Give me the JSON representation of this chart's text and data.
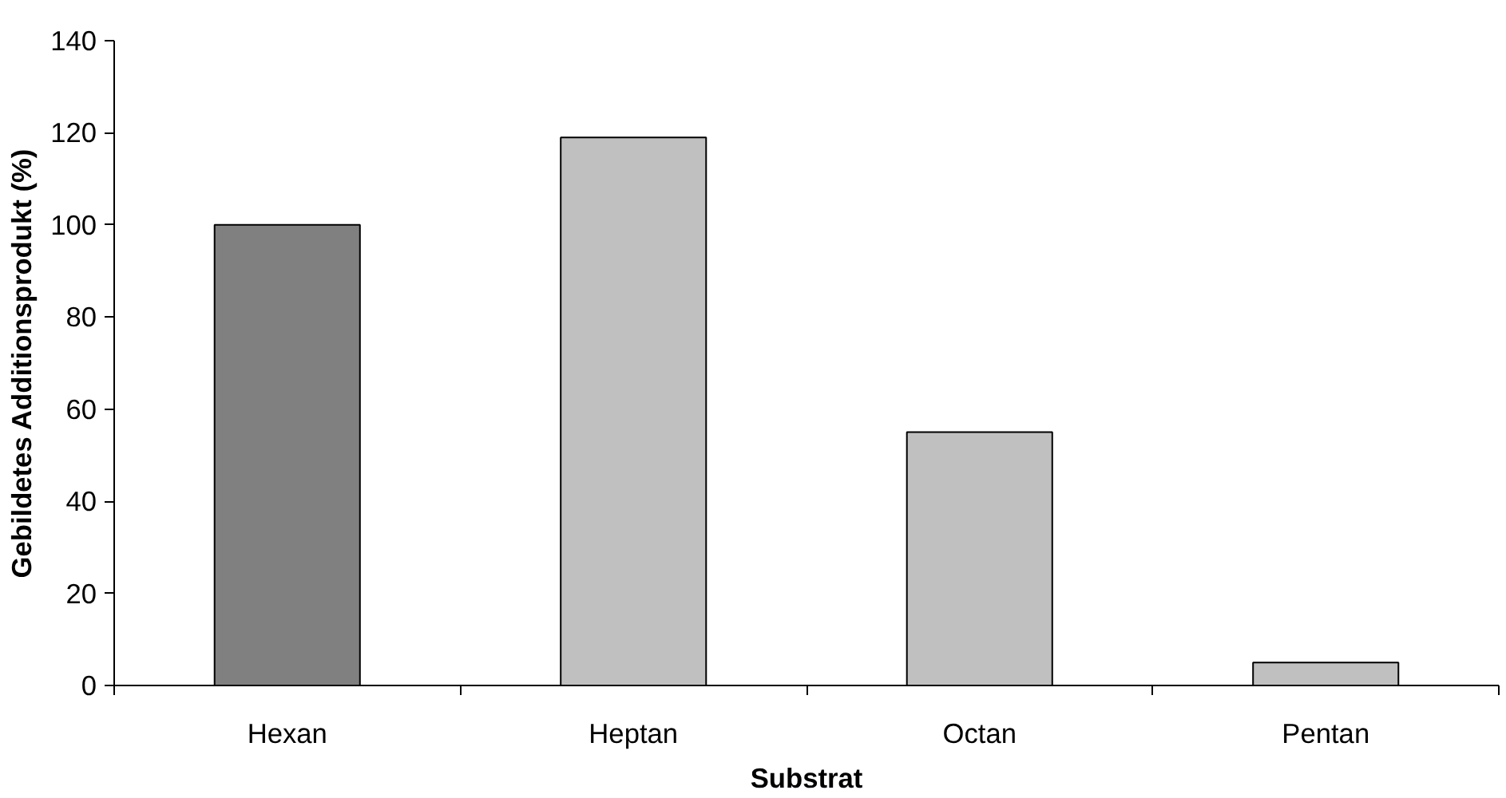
{
  "chart_data": {
    "type": "bar",
    "xlabel": "Substrat",
    "ylabel": "Gebildetes Additionsprodukt (%)",
    "categories": [
      "Hexan",
      "Heptan",
      "Octan",
      "Pentan"
    ],
    "values": [
      100,
      119,
      55,
      5
    ],
    "colors": [
      "#808080",
      "#c0c0c0",
      "#c0c0c0",
      "#c0c0c0"
    ],
    "ylim": [
      0,
      140
    ],
    "yticks": [
      0,
      20,
      40,
      60,
      80,
      100,
      120,
      140
    ],
    "grid": false
  }
}
